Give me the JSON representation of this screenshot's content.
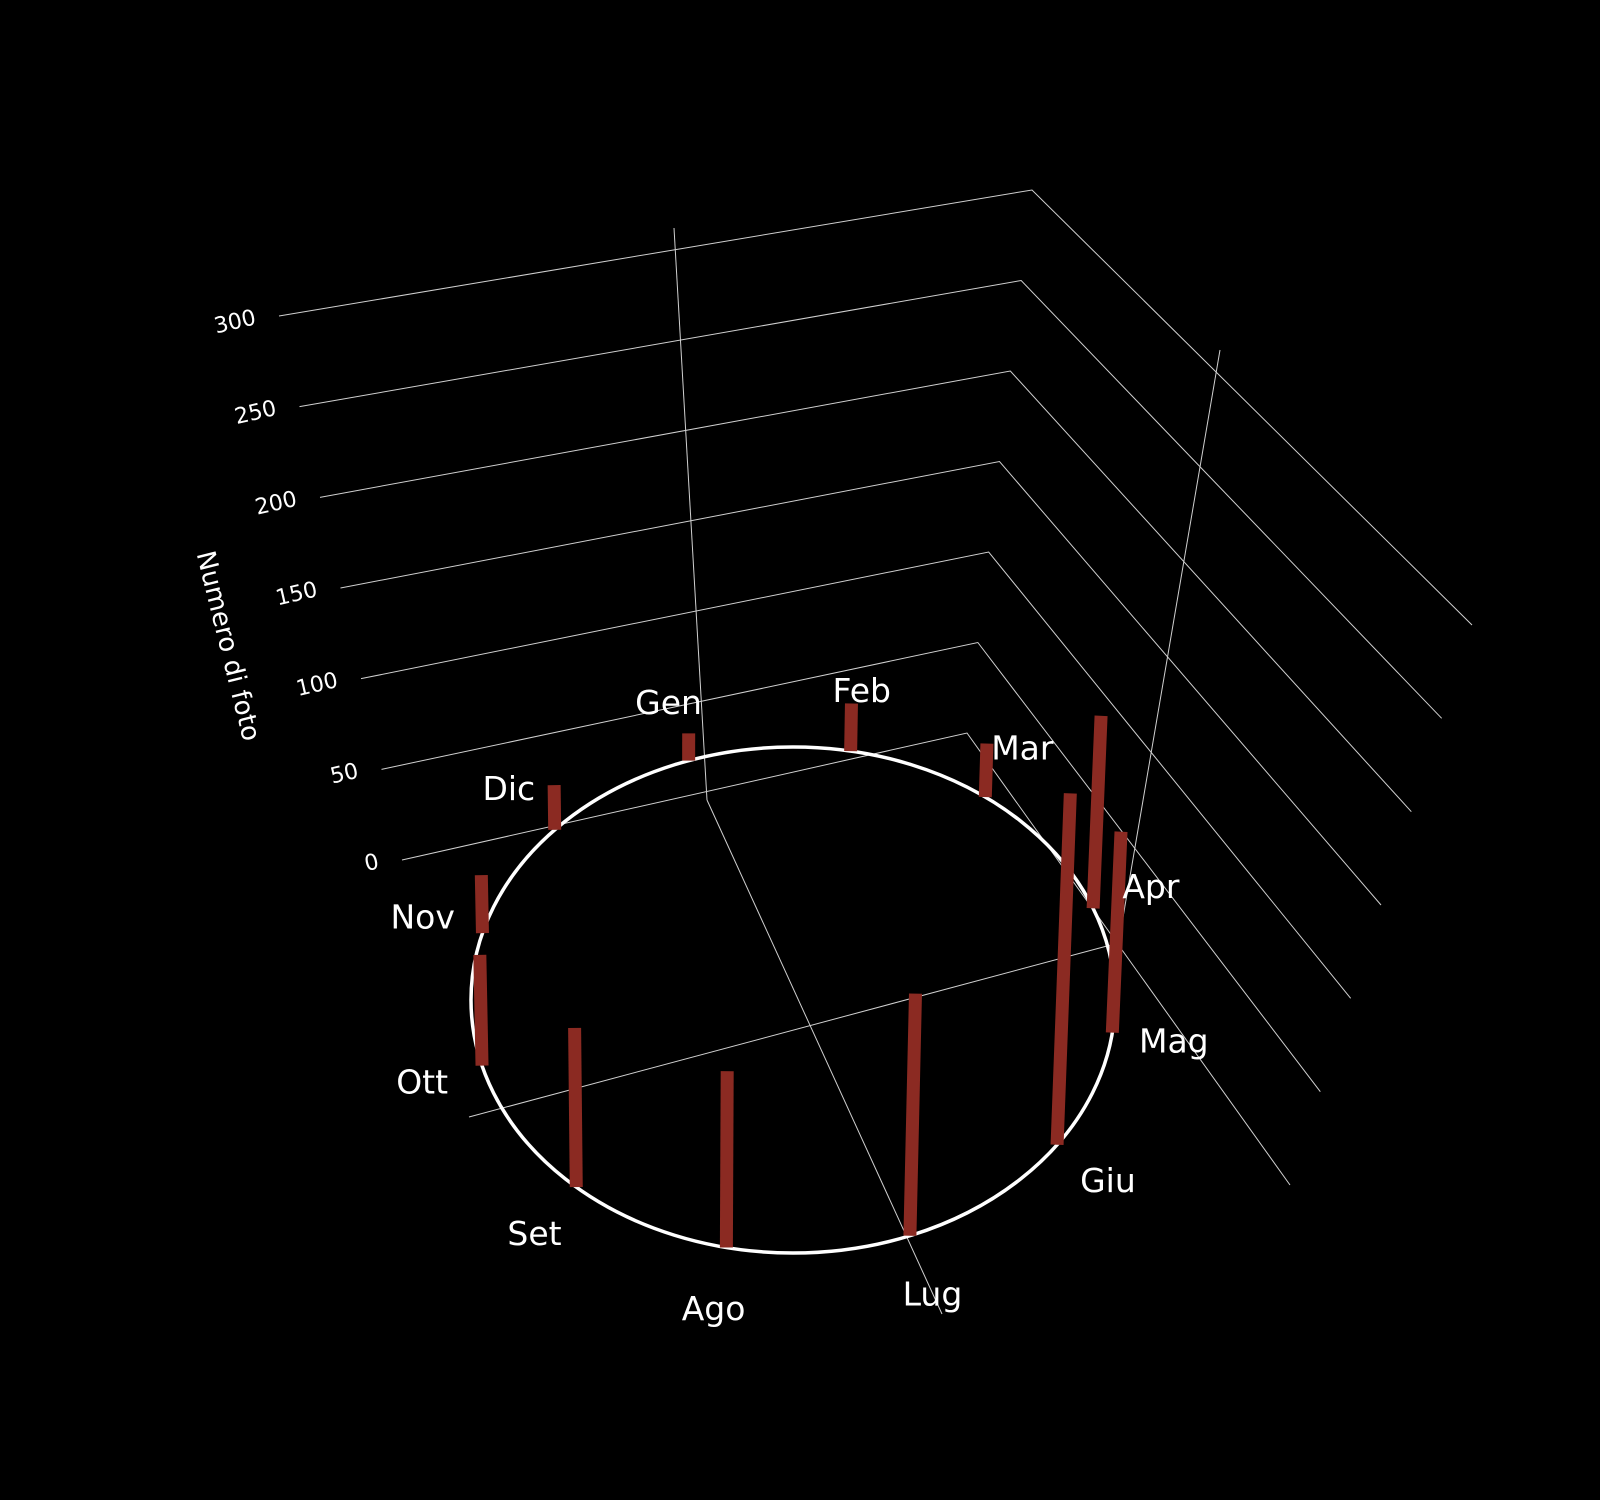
{
  "colors": {
    "background": "#000000",
    "bar": "#8b2a22",
    "grid": "#d0d0d0",
    "ring": "#ffffff",
    "text": "#ffffff"
  },
  "chart_data": {
    "type": "bar",
    "layout": "3d-radial",
    "categories": [
      "Gen",
      "Feb",
      "Mar",
      "Apr",
      "Mag",
      "Giu",
      "Lug",
      "Ago",
      "Set",
      "Ott",
      "Nov",
      "Dic"
    ],
    "values": [
      65,
      122,
      100,
      217,
      157,
      215,
      126,
      90,
      90,
      80,
      60,
      70
    ],
    "ylabel": "Numero di foto",
    "yticks": [
      0,
      50,
      100,
      150,
      200,
      250,
      300
    ],
    "ylim": [
      0,
      300
    ],
    "grid": true,
    "legend": "none"
  }
}
